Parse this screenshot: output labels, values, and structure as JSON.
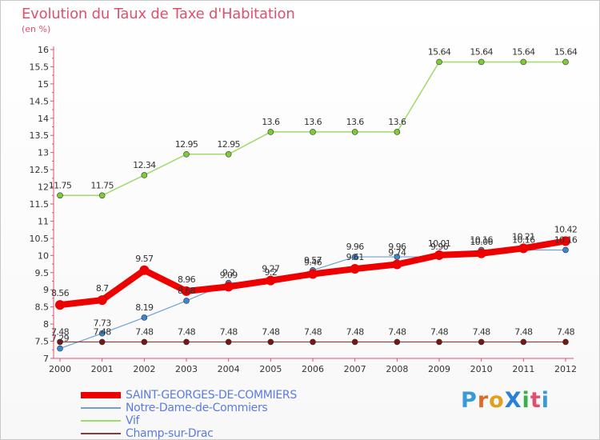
{
  "title": "Evolution du Taux de Taxe d'Habitation",
  "subtitle": "(en %)",
  "logo": {
    "text": "ProXiti",
    "letter_colors": [
      "#3a9ad9",
      "#e06a2a",
      "#e0a020",
      "#2a7fd9",
      "#3ab04a",
      "#e0506e"
    ]
  },
  "chart_data": {
    "type": "line",
    "x": [
      "2000",
      "2001",
      "2002",
      "2003",
      "2004",
      "2005",
      "2006",
      "2007",
      "2008",
      "2009",
      "2010",
      "2011",
      "2012"
    ],
    "ylim": [
      7,
      16
    ],
    "yticks": [
      "7",
      "7.5",
      "8",
      "8.5",
      "9",
      "9.5",
      "10",
      "10.5",
      "11",
      "11.5",
      "12",
      "12.5",
      "13",
      "13.5",
      "14",
      "14.5",
      "15",
      "15.5",
      "16"
    ],
    "grid": false,
    "legend_position": "bottom-left",
    "series": [
      {
        "name": "SAINT-GEORGES-DE-COMMIERS",
        "color": "#ee0000",
        "width": 8,
        "values": [
          8.56,
          8.7,
          9.57,
          8.96,
          9.09,
          9.27,
          9.46,
          9.61,
          9.74,
          10.01,
          10.06,
          10.21,
          10.42
        ],
        "labels": [
          "8.56",
          "8.7",
          "9.57",
          "8.96",
          "9.09",
          "9.27",
          "9.46",
          "9.61",
          "9.74",
          "10.01",
          "10.06",
          "10.21",
          "10.42"
        ]
      },
      {
        "name": "Notre-Dame-de-Commiers",
        "color": "#6fa0d0",
        "width": 1.2,
        "values": [
          7.29,
          7.73,
          8.19,
          8.68,
          9.2,
          9.22,
          9.57,
          9.96,
          9.96,
          9.96,
          10.16,
          10.16,
          10.16
        ],
        "labels": [
          "7.29",
          "7.73",
          "8.19",
          "8.68",
          "9.2",
          "9.2",
          "9.57",
          "9.96",
          "9.96",
          "9.96",
          "10.16",
          "10.16",
          "10.16"
        ]
      },
      {
        "name": "Vif",
        "color": "#9fdb6a",
        "width": 1.5,
        "values": [
          11.75,
          11.75,
          12.34,
          12.95,
          12.95,
          13.6,
          13.6,
          13.6,
          13.6,
          15.64,
          15.64,
          15.64,
          15.64
        ],
        "labels": [
          "11.75",
          "11.75",
          "12.34",
          "12.95",
          "12.95",
          "13.6",
          "13.6",
          "13.6",
          "13.6",
          "15.64",
          "15.64",
          "15.64",
          "15.64"
        ]
      },
      {
        "name": "Champ-sur-Drac",
        "color": "#8b3a3a",
        "width": 1.2,
        "values": [
          7.48,
          7.48,
          7.48,
          7.48,
          7.48,
          7.48,
          7.48,
          7.48,
          7.48,
          7.48,
          7.48,
          7.48,
          7.48
        ],
        "labels": [
          "7.48",
          "7.48",
          "7.48",
          "7.48",
          "7.48",
          "7.48",
          "7.48",
          "7.48",
          "7.48",
          "7.48",
          "7.48",
          "7.48",
          "7.48"
        ]
      }
    ]
  }
}
